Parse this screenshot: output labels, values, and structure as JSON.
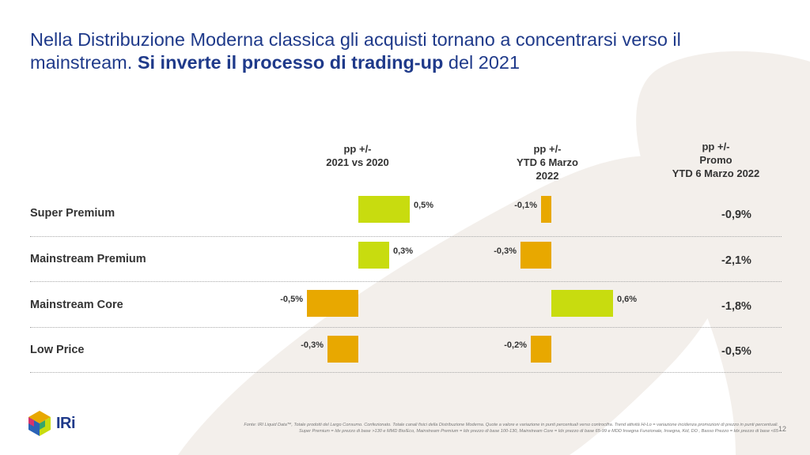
{
  "title": {
    "part1": "Nella Distribuzione Moderna classica gli acquisti tornano a concentrarsi verso il mainstream. ",
    "bold": "Si inverte il processo di trading-up",
    "part2": " del 2021"
  },
  "columns": {
    "col1": [
      "pp +/-",
      "2021 vs 2020"
    ],
    "col2": [
      "pp +/-",
      "YTD 6 Marzo",
      "2022"
    ],
    "col3": [
      "pp +/-",
      "Promo",
      "YTD 6 Marzo 2022"
    ]
  },
  "colors": {
    "positive": "#c8dc0f",
    "negative": "#e8a800",
    "title": "#1f3a8a"
  },
  "chart_data": {
    "type": "bar",
    "orientation": "horizontal",
    "categories": [
      "Super Premium",
      "Mainstream Premium",
      "Mainstream Core",
      "Low Price"
    ],
    "series": [
      {
        "values": [
          0.5,
          0.3,
          -0.5,
          -0.3
        ],
        "labels": [
          "0,5%",
          "0,3%",
          "-0,5%",
          "-0,3%"
        ]
      },
      {
        "values": [
          -0.1,
          -0.3,
          0.6,
          -0.2
        ],
        "labels": [
          "-0,1%",
          "-0,3%",
          "0,6%",
          "-0,2%"
        ]
      }
    ],
    "table_column": {
      "values": [
        -0.9,
        -2.1,
        -1.8,
        -0.5
      ],
      "labels": [
        "-0,9%",
        "-2,1%",
        "-1,8%",
        "-0,5%"
      ]
    }
  },
  "footnote": {
    "line1": "Fonte: IRI Liquid Data™, Totale prodotti del Largo Consumo. Confezionato. Totale canali fisici della Distribuzione Moderna. Quote a valore e variazione in punti percentuali verso controcifra. Trend attività Hi-Lo = variazione incidenza promozioni di prezzo in punti percentuali.",
    "line2": "Super Premium = Idx prezzo di base >130 e MMD Bio/Eco, Mainstream Premium = Idx prezzo di base 100-130, Mainstream Core = Idx prezzo di base 65-99 e MDD Insegna Funzionale, Insegna, Kid, DO , Basso Prezzo = Idx prezzo di base <65"
  },
  "page_number": "12",
  "logo": {
    "text": "IRi",
    "icon": "cube-logo-icon"
  }
}
